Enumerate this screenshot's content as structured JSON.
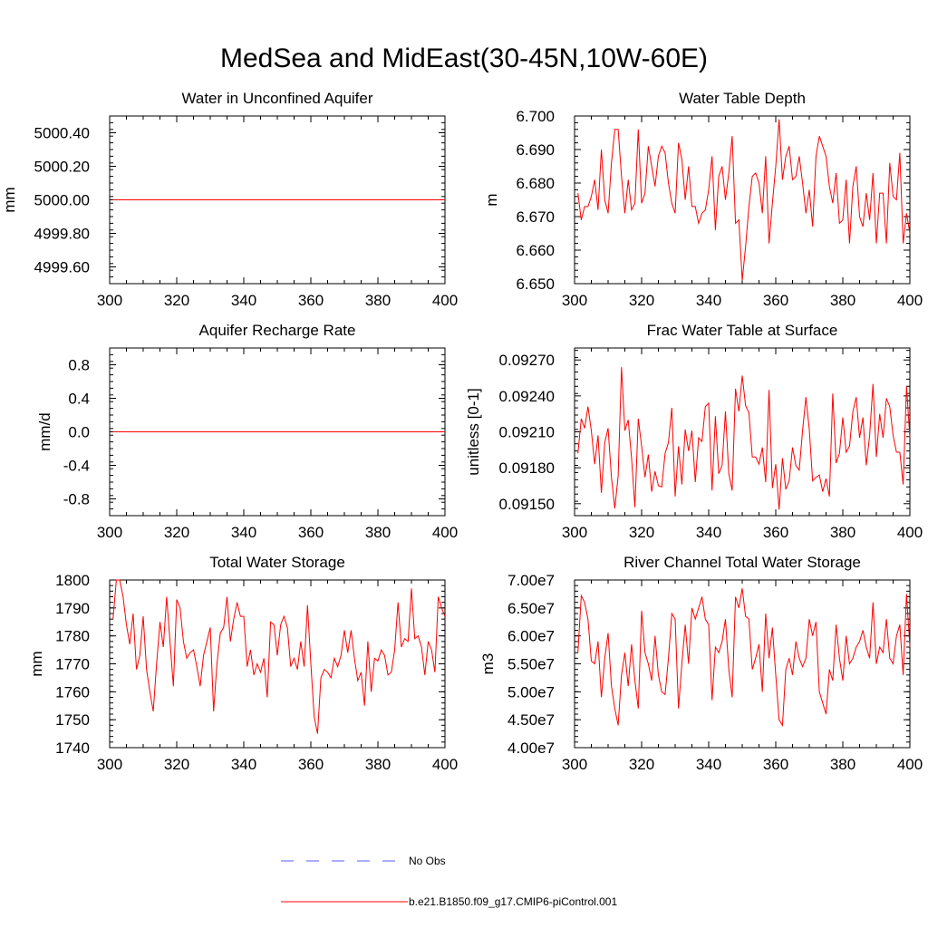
{
  "title": "MedSea and MidEast(30-45N,10W-60E)",
  "legend": {
    "obs_label": "No Obs",
    "obs_color": "#5a5aff",
    "model_label": "b.e21.B1850.f09_g17.CMIP6-piControl.001",
    "model_color": "#ff0000"
  },
  "chart_data": [
    {
      "type": "line",
      "title": "Water in Unconfined Aquifer",
      "ylabel": "mm",
      "xlabel": "",
      "xlim": [
        300,
        400
      ],
      "ylim": [
        4999.5,
        5000.5
      ],
      "xticks": [
        "300",
        "320",
        "340",
        "360",
        "380",
        "400"
      ],
      "yticks": [
        4999.6,
        4999.8,
        5000.0,
        5000.2,
        5000.4
      ],
      "ytick_labels": [
        "4999.60",
        "4999.80",
        "5000.00",
        "5000.20",
        "5000.40"
      ],
      "series": [
        {
          "name": "b.e21.B1850.f09_g17.CMIP6-piControl.001",
          "x_start": 301,
          "x_step": 1,
          "values": [
            5000,
            5000,
            5000,
            5000,
            5000,
            5000,
            5000,
            5000,
            5000,
            5000,
            5000,
            5000,
            5000,
            5000,
            5000,
            5000,
            5000,
            5000,
            5000,
            5000,
            5000,
            5000,
            5000,
            5000,
            5000,
            5000,
            5000,
            5000,
            5000,
            5000,
            5000,
            5000,
            5000,
            5000,
            5000,
            5000,
            5000,
            5000,
            5000,
            5000,
            5000,
            5000,
            5000,
            5000,
            5000,
            5000,
            5000,
            5000,
            5000,
            5000,
            5000,
            5000,
            5000,
            5000,
            5000,
            5000,
            5000,
            5000,
            5000,
            5000,
            5000,
            5000,
            5000,
            5000,
            5000,
            5000,
            5000,
            5000,
            5000,
            5000,
            5000,
            5000,
            5000,
            5000,
            5000,
            5000,
            5000,
            5000,
            5000,
            5000,
            5000,
            5000,
            5000,
            5000,
            5000,
            5000,
            5000,
            5000,
            5000,
            5000,
            5000,
            5000,
            5000,
            5000,
            5000,
            5000,
            5000,
            5000,
            5000,
            5000
          ]
        }
      ]
    },
    {
      "type": "line",
      "title": "Water Table Depth",
      "ylabel": "m",
      "xlabel": "",
      "xlim": [
        300,
        400
      ],
      "ylim": [
        6.65,
        6.7
      ],
      "xticks": [
        "300",
        "320",
        "340",
        "360",
        "380",
        "400"
      ],
      "yticks": [
        6.65,
        6.66,
        6.67,
        6.68,
        6.69,
        6.7
      ],
      "ytick_labels": [
        "6.650",
        "6.660",
        "6.670",
        "6.680",
        "6.690",
        "6.700"
      ],
      "series": [
        {
          "name": "b.e21.B1850.f09_g17.CMIP6-piControl.001",
          "x_start": 301,
          "x_step": 1,
          "values": [
            6.677,
            6.669,
            6.673,
            6.673,
            6.676,
            6.681,
            6.672,
            6.69,
            6.675,
            6.671,
            6.686,
            6.696,
            6.696,
            6.682,
            6.671,
            6.681,
            6.672,
            6.674,
            6.696,
            6.674,
            6.677,
            6.691,
            6.685,
            6.679,
            6.688,
            6.691,
            6.689,
            6.68,
            6.674,
            6.671,
            6.692,
            6.687,
            6.675,
            6.685,
            6.673,
            6.673,
            6.668,
            6.671,
            6.672,
            6.678,
            6.688,
            6.666,
            6.682,
            6.685,
            6.675,
            6.683,
            6.694,
            6.668,
            6.669,
            6.651,
            6.661,
            6.673,
            6.682,
            6.683,
            6.68,
            6.671,
            6.688,
            6.662,
            6.674,
            6.685,
            6.699,
            6.681,
            6.688,
            6.691,
            6.681,
            6.682,
            6.688,
            6.68,
            6.671,
            6.678,
            6.667,
            6.688,
            6.694,
            6.691,
            6.688,
            6.679,
            6.674,
            6.683,
            6.668,
            6.669,
            6.681,
            6.662,
            6.679,
            6.685,
            6.67,
            6.667,
            6.677,
            6.669,
            6.683,
            6.662,
            6.677,
            6.677,
            6.662,
            6.686,
            6.676,
            6.675,
            6.689,
            6.662,
            6.671,
            6.665
          ]
        }
      ]
    },
    {
      "type": "line",
      "title": "Aquifer Recharge Rate",
      "ylabel": "mm/d",
      "xlabel": "",
      "xlim": [
        300,
        400
      ],
      "ylim": [
        -1.0,
        1.0
      ],
      "xticks": [
        "300",
        "320",
        "340",
        "360",
        "380",
        "400"
      ],
      "yticks": [
        -0.8,
        -0.4,
        0.0,
        0.4,
        0.8
      ],
      "ytick_labels": [
        "-0.8",
        "-0.4",
        "0.0",
        "0.4",
        "0.8"
      ],
      "series": [
        {
          "name": "b.e21.B1850.f09_g17.CMIP6-piControl.001",
          "x_start": 301,
          "x_step": 1,
          "values": [
            0,
            0,
            0,
            0,
            0,
            0,
            0,
            0,
            0,
            0,
            0,
            0,
            0,
            0,
            0,
            0,
            0,
            0,
            0,
            0,
            0,
            0,
            0,
            0,
            0,
            0,
            0,
            0,
            0,
            0,
            0,
            0,
            0,
            0,
            0,
            0,
            0,
            0,
            0,
            0,
            0,
            0,
            0,
            0,
            0,
            0,
            0,
            0,
            0,
            0,
            0,
            0,
            0,
            0,
            0,
            0,
            0,
            0,
            0,
            0,
            0,
            0,
            0,
            0,
            0,
            0,
            0,
            0,
            0,
            0,
            0,
            0,
            0,
            0,
            0,
            0,
            0,
            0,
            0,
            0,
            0,
            0,
            0,
            0,
            0,
            0,
            0,
            0,
            0,
            0,
            0,
            0,
            0,
            0,
            0,
            0,
            0,
            0,
            0,
            0
          ]
        }
      ]
    },
    {
      "type": "line",
      "title": "Frac Water Table at Surface",
      "ylabel": "unitless [0-1]",
      "xlabel": "",
      "xlim": [
        300,
        400
      ],
      "ylim": [
        0.0914,
        0.0928
      ],
      "xticks": [
        "300",
        "320",
        "340",
        "360",
        "380",
        "400"
      ],
      "yticks": [
        0.0915,
        0.0918,
        0.0921,
        0.0924,
        0.0927
      ],
      "ytick_labels": [
        "0.09150",
        "0.09180",
        "0.09210",
        "0.09240",
        "0.09270"
      ],
      "series": [
        {
          "name": "b.e21.B1850.f09_g17.CMIP6-piControl.001",
          "x_start": 301,
          "x_step": 1,
          "values": [
            0.09192,
            0.09221,
            0.09213,
            0.09231,
            0.09211,
            0.09183,
            0.09207,
            0.09159,
            0.09201,
            0.09213,
            0.09172,
            0.09146,
            0.09173,
            0.09264,
            0.09211,
            0.0922,
            0.09188,
            0.09147,
            0.09221,
            0.09198,
            0.09172,
            0.09191,
            0.0916,
            0.09177,
            0.09165,
            0.09164,
            0.09192,
            0.09201,
            0.0923,
            0.09156,
            0.09198,
            0.09166,
            0.09212,
            0.09194,
            0.09211,
            0.09168,
            0.09205,
            0.09202,
            0.09231,
            0.09234,
            0.09161,
            0.09223,
            0.09175,
            0.09182,
            0.09227,
            0.09175,
            0.09161,
            0.09246,
            0.09227,
            0.09257,
            0.09232,
            0.09226,
            0.09189,
            0.09189,
            0.09183,
            0.09197,
            0.09168,
            0.09245,
            0.09163,
            0.09183,
            0.09145,
            0.09188,
            0.09162,
            0.09169,
            0.09197,
            0.09182,
            0.09178,
            0.09211,
            0.09239,
            0.09212,
            0.09169,
            0.09172,
            0.09174,
            0.0916,
            0.09171,
            0.09156,
            0.09242,
            0.09184,
            0.09192,
            0.09222,
            0.09193,
            0.09198,
            0.09227,
            0.09239,
            0.09205,
            0.09222,
            0.09182,
            0.09207,
            0.0925,
            0.09189,
            0.09225,
            0.09205,
            0.09238,
            0.09231,
            0.09207,
            0.09193,
            0.09193,
            0.09166,
            0.09248,
            0.09205
          ]
        }
      ]
    },
    {
      "type": "line",
      "title": "Total Water Storage",
      "ylabel": "mm",
      "xlabel": "",
      "xlim": [
        300,
        400
      ],
      "ylim": [
        1740,
        1800
      ],
      "xticks": [
        "300",
        "320",
        "340",
        "360",
        "380",
        "400"
      ],
      "yticks": [
        1740,
        1750,
        1760,
        1770,
        1780,
        1790,
        1800
      ],
      "ytick_labels": [
        "1740",
        "1750",
        "1760",
        "1770",
        "1780",
        "1790",
        "1800"
      ],
      "series": [
        {
          "name": "b.e21.B1850.f09_g17.CMIP6-piControl.001",
          "x_start": 301,
          "x_step": 1,
          "values": [
            1786,
            1800,
            1800,
            1794,
            1784,
            1777,
            1788,
            1768,
            1773,
            1787,
            1768,
            1760,
            1753,
            1770,
            1785,
            1776,
            1794,
            1778,
            1762,
            1793,
            1790,
            1778,
            1772,
            1774,
            1775,
            1769,
            1762,
            1773,
            1778,
            1783,
            1753,
            1770,
            1781,
            1783,
            1794,
            1778,
            1786,
            1792,
            1787,
            1787,
            1769,
            1775,
            1766,
            1770,
            1767,
            1772,
            1758,
            1785,
            1784,
            1773,
            1784,
            1787,
            1783,
            1769,
            1772,
            1768,
            1778,
            1769,
            1791,
            1770,
            1751,
            1745,
            1765,
            1768,
            1767,
            1765,
            1772,
            1769,
            1773,
            1782,
            1774,
            1782,
            1772,
            1764,
            1767,
            1755,
            1778,
            1760,
            1772,
            1771,
            1775,
            1773,
            1766,
            1767,
            1775,
            1792,
            1776,
            1779,
            1778,
            1797,
            1779,
            1780,
            1776,
            1766,
            1778,
            1775,
            1767,
            1794,
            1790,
            1787
          ]
        }
      ]
    },
    {
      "type": "line",
      "title": "River Channel Total Water Storage",
      "ylabel": "m3",
      "xlabel": "",
      "xlim": [
        300,
        400
      ],
      "ylim": [
        40000000.0,
        70000000.0
      ],
      "xticks": [
        "300",
        "320",
        "340",
        "360",
        "380",
        "400"
      ],
      "yticks": [
        40000000.0,
        45000000.0,
        50000000.0,
        55000000.0,
        60000000.0,
        65000000.0,
        70000000.0
      ],
      "ytick_labels": [
        "4.00e7",
        "4.50e7",
        "5.00e7",
        "5.50e7",
        "6.00e7",
        "6.50e7",
        "7.00e7"
      ],
      "series": [
        {
          "name": "b.e21.B1850.f09_g17.CMIP6-piControl.001",
          "x_start": 301,
          "x_step": 1,
          "values": [
            57000000.0,
            67200000.0,
            66000000.0,
            63000000.0,
            55500000.0,
            55000000.0,
            59000000.0,
            49000000.0,
            56000000.0,
            60500000.0,
            51000000.0,
            47000000.0,
            44000000.0,
            53000000.0,
            57000000.0,
            51000000.0,
            58500000.0,
            52000000.0,
            47000000.0,
            64500000.0,
            57000000.0,
            55000000.0,
            52000000.0,
            60000000.0,
            53000000.0,
            50000000.0,
            49500000.0,
            56000000.0,
            64000000.0,
            63000000.0,
            47000000.0,
            55000000.0,
            62000000.0,
            55000000.0,
            65000000.0,
            63000000.0,
            65000000.0,
            67000000.0,
            63000000.0,
            62000000.0,
            48500000.0,
            58000000.0,
            57000000.0,
            59000000.0,
            63000000.0,
            54000000.0,
            49000000.0,
            67000000.0,
            65000000.0,
            68500000.0,
            63500000.0,
            63000000.0,
            54000000.0,
            56000000.0,
            58500000.0,
            50000000.0,
            64000000.0,
            56000000.0,
            61500000.0,
            53000000.0,
            45000000.0,
            44000000.0,
            54000000.0,
            56000000.0,
            53000000.0,
            59000000.0,
            56000000.0,
            54500000.0,
            56000000.0,
            63000000.0,
            60000000.0,
            62500000.0,
            50000000.0,
            48000000.0,
            46000000.0,
            54000000.0,
            52000000.0,
            62000000.0,
            56000000.0,
            52000000.0,
            60000000.0,
            55000000.0,
            56000000.0,
            58000000.0,
            59000000.0,
            61000000.0,
            58000000.0,
            56000000.0,
            66000000.0,
            55000000.0,
            58000000.0,
            57000000.0,
            63000000.0,
            56000000.0,
            55000000.0,
            60000000.0,
            62000000.0,
            53000000.0,
            67500000.0,
            58000000.0
          ]
        }
      ]
    }
  ]
}
